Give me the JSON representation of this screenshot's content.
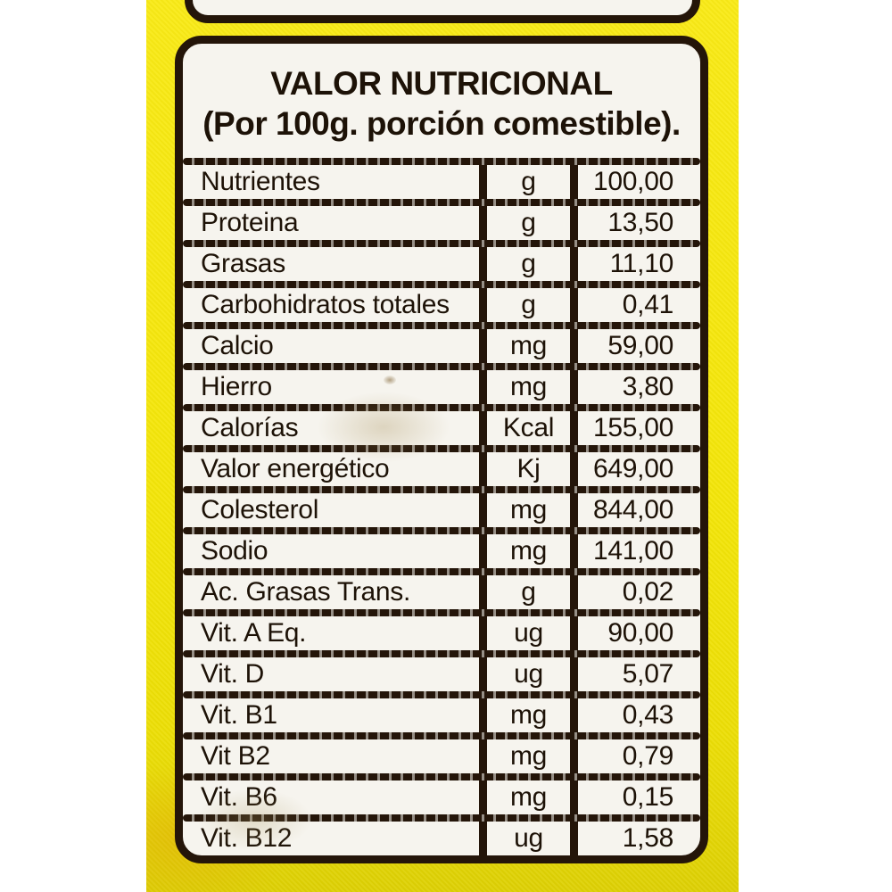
{
  "photo": {
    "background_color": "#ffffff"
  },
  "package": {
    "color_top": "#f9ea16",
    "color_bottom": "#ddd004"
  },
  "label": {
    "title": "VALOR NUTRICIONAL",
    "subtitle": "(Por 100g. porción comestible).",
    "panel_color": "#f6f4ee",
    "ink_color": "#241509",
    "table": {
      "rows": [
        {
          "name": "Nutrientes",
          "unit": "g",
          "value": "100,00"
        },
        {
          "name": "Proteina",
          "unit": "g",
          "value": "13,50"
        },
        {
          "name": "Grasas",
          "unit": "g",
          "value": "11,10"
        },
        {
          "name": "Carbohidratos totales",
          "unit": "g",
          "value": "0,41"
        },
        {
          "name": "Calcio",
          "unit": "mg",
          "value": "59,00"
        },
        {
          "name": "Hierro",
          "unit": "mg",
          "value": "3,80"
        },
        {
          "name": "Calorías",
          "unit": "Kcal",
          "value": "155,00"
        },
        {
          "name": "Valor energético",
          "unit": "Kj",
          "value": "649,00"
        },
        {
          "name": "Colesterol",
          "unit": "mg",
          "value": "844,00"
        },
        {
          "name": "Sodio",
          "unit": "mg",
          "value": "141,00"
        },
        {
          "name": "Ac. Grasas Trans.",
          "unit": "g",
          "value": "0,02"
        },
        {
          "name": "Vit. A Eq.",
          "unit": "ug",
          "value": "90,00"
        },
        {
          "name": "Vit. D",
          "unit": "ug",
          "value": "5,07"
        },
        {
          "name": "Vit. B1",
          "unit": "mg",
          "value": "0,43"
        },
        {
          "name": "Vit B2",
          "unit": "mg",
          "value": "0,79"
        },
        {
          "name": "Vit. B6",
          "unit": "mg",
          "value": "0,15"
        },
        {
          "name": "Vit. B12",
          "unit": "ug",
          "value": "1,58"
        }
      ]
    }
  }
}
